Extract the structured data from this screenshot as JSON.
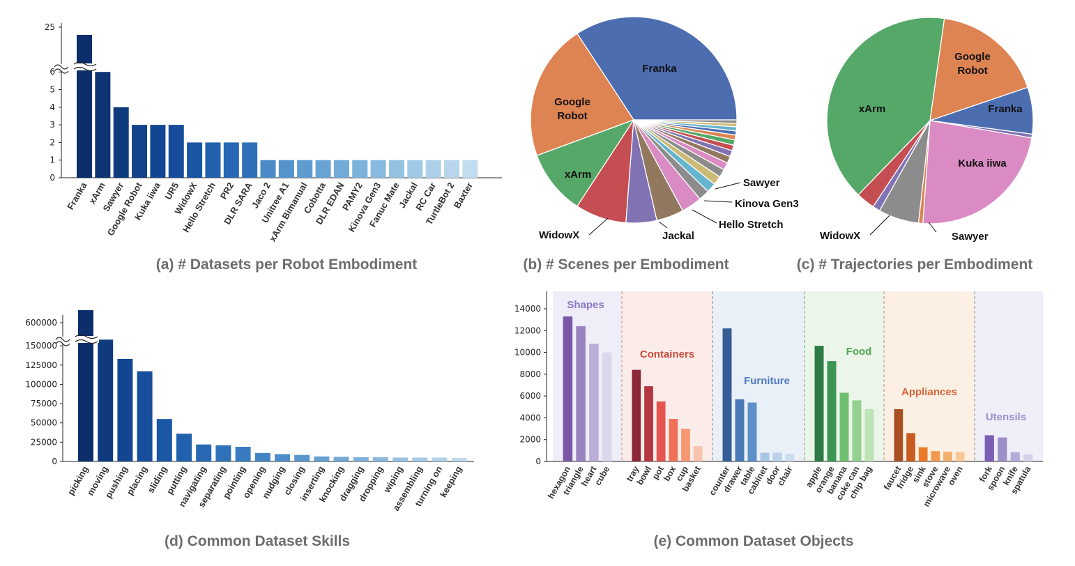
{
  "chart_data": [
    {
      "id": "a",
      "type": "bar",
      "title": "(a) # Datasets per Robot Embodiment",
      "categories": [
        "Franka",
        "xArm",
        "Sawyer",
        "Google Robot",
        "Kuka iiwa",
        "UR5",
        "WidowX",
        "Hello Stretch",
        "PR2",
        "DLR SARA",
        "Jaco 2",
        "Unitree A1",
        "xArm Bimanual",
        "Cobotta",
        "DLR EDAN",
        "PAMY2",
        "Kinova Gen3",
        "Fanuc Mate",
        "Jackal",
        "RC Car",
        "TurtleBot 2",
        "Baxter"
      ],
      "values": [
        24,
        6,
        4,
        3,
        3,
        3,
        2,
        2,
        2,
        2,
        1,
        1,
        1,
        1,
        1,
        1,
        1,
        1,
        1,
        1,
        1,
        1
      ],
      "yticks": [
        "0",
        "1",
        "2",
        "3",
        "4",
        "5",
        "6",
        "25"
      ],
      "axis_break": true,
      "ylim": [
        0,
        25
      ],
      "colors": [
        "#0c2f6b",
        "#0e3475",
        "#0f3a7e",
        "#124289",
        "#134690",
        "#154b98",
        "#1a55a3",
        "#2060ac",
        "#2666b2",
        "#2f70b8",
        "#4a8ac6",
        "#5493cb",
        "#5e9bcf",
        "#68a3d3",
        "#72abd8",
        "#7cb3dc",
        "#88badf",
        "#94c2e2",
        "#a0c9e6",
        "#acd0e9",
        "#b7d6ec",
        "#c2ddef"
      ]
    },
    {
      "id": "b",
      "type": "pie",
      "title": "(b) # Scenes per Embodiment",
      "labels": [
        "Franka",
        "Google Robot",
        "xArm",
        "WidowX",
        "Jackal",
        "Hello Stretch",
        "Kinova Gen3",
        "Sawyer"
      ],
      "values": [
        32,
        20,
        9.5,
        7.5,
        4.5,
        4,
        3,
        1.6
      ],
      "other_values": [
        1.4,
        1.3,
        1.2,
        1.1,
        1,
        0.9,
        0.8,
        0.8,
        0.7,
        0.6,
        0.6,
        0.5,
        0.5
      ],
      "colors": [
        "#4c6db0",
        "#dd8452",
        "#55a868",
        "#c44e52",
        "#8172b3",
        "#937860",
        "#da8bc3",
        "#8c8c8c",
        "#ccb974",
        "#64b5cd"
      ]
    },
    {
      "id": "c",
      "type": "pie",
      "title": "(c) # Trajectories per Embodiment",
      "labels": [
        "Google Robot",
        "Franka",
        "Kuka iiwa",
        "Sawyer",
        "WidowX",
        "xArm"
      ],
      "values": [
        18,
        7.5,
        24,
        6.5,
        3,
        41
      ],
      "extra_values": [
        {
          "after": "Franka",
          "value": 0.6,
          "color": "#8172b3"
        },
        {
          "after": "Sawyer",
          "value": 0.7,
          "color": "#dd8452"
        },
        {
          "after": "WidowX",
          "value": 1.2,
          "color": "#8172b3"
        }
      ],
      "colors": [
        "#dd8452",
        "#4c6db0",
        "#da8bc3",
        "#8c8c8c",
        "#c44e52",
        "#55a868"
      ]
    },
    {
      "id": "d",
      "type": "bar",
      "title": "(d) Common Dataset Skills",
      "categories": [
        "picking",
        "moving",
        "pushing",
        "placing",
        "sliding",
        "putting",
        "navigating",
        "separating",
        "pointing",
        "opening",
        "nudging",
        "closing",
        "inserting",
        "knocking",
        "dragging",
        "dropping",
        "wiping",
        "assembling",
        "turning on",
        "keeping"
      ],
      "values": [
        640000,
        158000,
        133000,
        117000,
        55000,
        36000,
        22000,
        21000,
        19000,
        11000,
        9500,
        8500,
        6500,
        6000,
        5500,
        5500,
        5000,
        5000,
        5000,
        4500
      ],
      "yticks": [
        "0",
        "25000",
        "50000",
        "75000",
        "100000",
        "125000",
        "150000",
        "600000"
      ],
      "axis_break": true,
      "colors": [
        "#0c2f6b",
        "#0f3a7e",
        "#134690",
        "#164e9b",
        "#1a57a4",
        "#2060ac",
        "#2769b3",
        "#2f72b9",
        "#387bbf",
        "#4384c4",
        "#4e8dc9",
        "#5a97ce",
        "#66a0d2",
        "#72a9d7",
        "#7eb2db",
        "#8bbadf",
        "#97c2e3",
        "#a4cae7",
        "#b0d2ea",
        "#bcd9ee"
      ]
    },
    {
      "id": "e",
      "type": "bar",
      "title": "(e) Common Dataset Objects",
      "yticks": [
        "0",
        "2000",
        "4000",
        "6000",
        "8000",
        "10000",
        "12000",
        "14000"
      ],
      "ylim": [
        0,
        14000
      ],
      "groups": [
        {
          "name": "Shapes",
          "color": "#8a77c8",
          "bg": "#efedf7",
          "categories": [
            "hexagon",
            "triangle",
            "heart",
            "cube"
          ],
          "values": [
            13300,
            12400,
            10800,
            10000
          ],
          "colors": [
            "#7c56a6",
            "#9982bf",
            "#bbaed8",
            "#dcd8ec"
          ]
        },
        {
          "name": "Containers",
          "color": "#c94c3e",
          "bg": "#fbece9",
          "categories": [
            "tray",
            "bowl",
            "pot",
            "box",
            "cup",
            "basket"
          ],
          "values": [
            8400,
            6900,
            5500,
            3900,
            3000,
            1400
          ],
          "colors": [
            "#8b2736",
            "#b33641",
            "#e5544e",
            "#ef7158",
            "#f69872",
            "#f8c3ae"
          ]
        },
        {
          "name": "Furniture",
          "color": "#4d7bbf",
          "bg": "#eaf0f7",
          "categories": [
            "counter",
            "drawer",
            "table",
            "cabinet",
            "door",
            "chair"
          ],
          "values": [
            12200,
            5700,
            5400,
            800,
            800,
            700
          ],
          "colors": [
            "#355e95",
            "#4a7ab7",
            "#5e90c9",
            "#a6c4e3",
            "#b8d0ea",
            "#cbdcef"
          ]
        },
        {
          "name": "Food",
          "color": "#4ea653",
          "bg": "#ecf5e9",
          "categories": [
            "apple",
            "orange",
            "banana",
            "coke can",
            "chip bag"
          ],
          "values": [
            10600,
            9200,
            6300,
            5600,
            4800
          ],
          "colors": [
            "#2c7a45",
            "#3c9653",
            "#6fbf70",
            "#94d08f",
            "#bde3b7"
          ]
        },
        {
          "name": "Appliances",
          "color": "#d5653a",
          "bg": "#fcf0e4",
          "categories": [
            "faucet",
            "fridge",
            "sink",
            "stove",
            "microwave",
            "oven"
          ],
          "values": [
            4800,
            2600,
            1300,
            950,
            900,
            850
          ],
          "colors": [
            "#a94f24",
            "#c85c23",
            "#ea7b2a",
            "#f19a4f",
            "#f5b070",
            "#f8c897"
          ]
        },
        {
          "name": "Utensils",
          "color": "#9c8ed2",
          "bg": "#efeff8",
          "categories": [
            "fork",
            "spoon",
            "knife",
            "spatula"
          ],
          "values": [
            2400,
            2200,
            850,
            650
          ],
          "colors": [
            "#7c5fb4",
            "#9e8fca",
            "#b6abd8",
            "#d6d1ea"
          ]
        }
      ]
    }
  ]
}
